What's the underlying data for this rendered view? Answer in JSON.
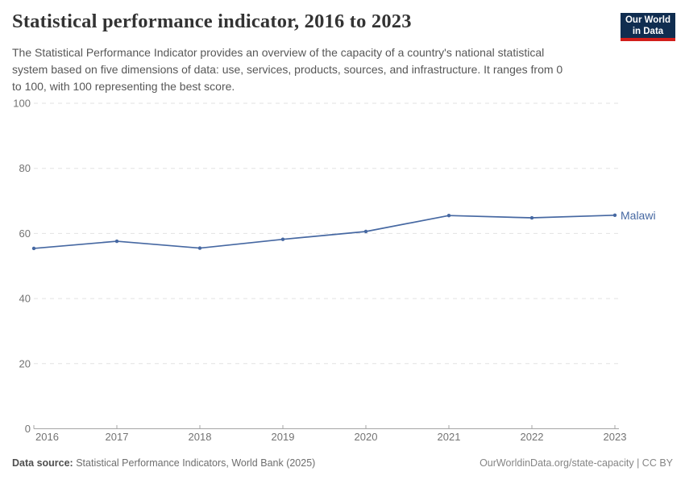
{
  "header": {
    "title": "Statistical performance indicator, 2016 to 2023",
    "subtitle_lines": [
      "The Statistical Performance Indicator provides an overview of the capacity of a country's national statistical",
      "system based on five dimensions of data: use, services, products, sources, and infrastructure. It ranges from 0",
      "to 100, with 100 representing the best score."
    ],
    "logo": {
      "line1": "Our World",
      "line2": "in Data",
      "bg_color": "#102d50",
      "bar_color": "#d21e1a"
    }
  },
  "chart_data": {
    "type": "line",
    "title": "Statistical performance indicator, 2016 to 2023",
    "x": [
      2016,
      2017,
      2018,
      2019,
      2020,
      2021,
      2022,
      2023
    ],
    "series": [
      {
        "name": "Malawi",
        "values": [
          55.4,
          57.6,
          55.5,
          58.2,
          60.6,
          65.5,
          64.8,
          65.6
        ],
        "color": "#4668a2"
      }
    ],
    "ylim": [
      0,
      100
    ],
    "yticks": [
      0,
      20,
      40,
      60,
      80,
      100
    ],
    "grid": true,
    "grid_color": "#e2e2e2",
    "axis_color": "#a6a6a6",
    "tick_label_color": "#737373",
    "legend_position": "end-of-line-label"
  },
  "footer": {
    "datasource_label": "Data source:",
    "datasource_text": " Statistical Performance Indicators, World Bank (2025)",
    "attribution": "OurWorldinData.org/state-capacity | CC BY"
  }
}
